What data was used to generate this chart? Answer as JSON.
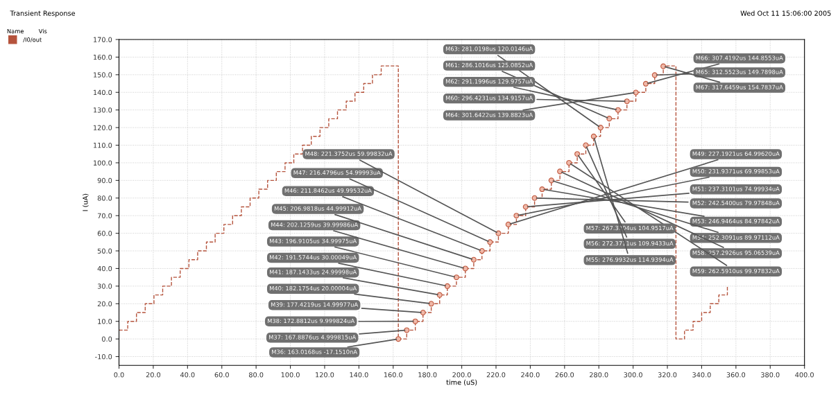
{
  "chart_data": {
    "type": "step",
    "title": "Transient Response",
    "xlabel": "time (uS)",
    "ylabel": "I (uA)",
    "legend_title": "Name        Vis",
    "legend": "left",
    "grid": true,
    "line_style": "dashed",
    "xlim": [
      0,
      400
    ],
    "xticks": [
      {
        "value": 0,
        "label": "0.0"
      },
      {
        "value": 20,
        "label": "20.0"
      },
      {
        "value": 40,
        "label": "40.0"
      },
      {
        "value": 60,
        "label": "60.0"
      },
      {
        "value": 80,
        "label": "80.0"
      },
      {
        "value": 100,
        "label": "100.0"
      },
      {
        "value": 120,
        "label": "120.0"
      },
      {
        "value": 140,
        "label": "140.0"
      },
      {
        "value": 160,
        "label": "160.0"
      },
      {
        "value": 180,
        "label": "180.0"
      },
      {
        "value": 200,
        "label": "200.0"
      },
      {
        "value": 220,
        "label": "220.0"
      },
      {
        "value": 240,
        "label": "240.0"
      },
      {
        "value": 260,
        "label": "260.0"
      },
      {
        "value": 280,
        "label": "280.0"
      },
      {
        "value": 300,
        "label": "300.0"
      },
      {
        "value": 320,
        "label": "320.0"
      },
      {
        "value": 340,
        "label": "340.0"
      },
      {
        "value": 360,
        "label": "360.0"
      },
      {
        "value": 380,
        "label": "380.0"
      },
      {
        "value": 400,
        "label": "400.0"
      }
    ],
    "ylim": [
      -15,
      170
    ],
    "yticks": [
      {
        "value": -10,
        "label": "-10.0"
      },
      {
        "value": 0,
        "label": "0.0"
      },
      {
        "value": 10,
        "label": "10.0"
      },
      {
        "value": 20,
        "label": "20.0"
      },
      {
        "value": 30,
        "label": "30.0"
      },
      {
        "value": 40,
        "label": "40.0"
      },
      {
        "value": 50,
        "label": "50.0"
      },
      {
        "value": 60,
        "label": "60.0"
      },
      {
        "value": 70,
        "label": "70.0"
      },
      {
        "value": 80,
        "label": "80.0"
      },
      {
        "value": 90,
        "label": "90.0"
      },
      {
        "value": 100,
        "label": "100.0"
      },
      {
        "value": 110,
        "label": "110.0"
      },
      {
        "value": 120,
        "label": "120.0"
      },
      {
        "value": 130,
        "label": "130.0"
      },
      {
        "value": 140,
        "label": "140.0"
      },
      {
        "value": 150,
        "label": "150.0"
      },
      {
        "value": 160,
        "label": "160.0"
      },
      {
        "value": 170,
        "label": "170.0"
      }
    ],
    "series": [
      {
        "name": "/I0/out",
        "color": "#b5533c",
        "x": [
          0,
          5.1,
          10.2,
          15.3,
          20.4,
          25.5,
          30.6,
          35.7,
          40.8,
          45.9,
          51,
          56.1,
          61.2,
          66.3,
          71.4,
          76.5,
          81.6,
          86.7,
          91.8,
          96.9,
          102,
          107.1,
          112.2,
          117.3,
          122.4,
          127.5,
          132.6,
          137.7,
          142.8,
          147.9,
          153,
          163.0,
          167.9,
          172.9,
          177.4,
          182.2,
          187.1,
          191.6,
          196.9,
          202.1,
          207.0,
          211.8,
          216.5,
          221.4,
          227.2,
          231.9,
          237.3,
          242.5,
          246.9,
          252.3,
          257.3,
          262.6,
          267.4,
          272.4,
          277.0,
          281.0,
          286.1,
          291.2,
          296.4,
          301.6,
          307.4,
          312.6,
          317.6,
          325,
          330,
          335,
          340,
          345,
          350,
          355
        ],
        "values": [
          5,
          10,
          15,
          20,
          25,
          30,
          35,
          40,
          45,
          50,
          55,
          60,
          65,
          70,
          75,
          80,
          85,
          90,
          95,
          100,
          105,
          110,
          115,
          120,
          125,
          130,
          135,
          140,
          145,
          150,
          155,
          0,
          5,
          10,
          15,
          20,
          25,
          30,
          35,
          40,
          45,
          50,
          55,
          60,
          65,
          70,
          75,
          80,
          85,
          90,
          95,
          100,
          105,
          110,
          115,
          120,
          125,
          130,
          135,
          140,
          145,
          150,
          155,
          0,
          5,
          10,
          15,
          20,
          25,
          30
        ]
      }
    ],
    "annotations": [
      {
        "text": "M36: 163.0168us -17.1510nA",
        "x": 163.0,
        "y": -0.01715
      },
      {
        "text": "M37: 167.8876us 4.999815uA",
        "x": 167.9,
        "y": 5.0
      },
      {
        "text": "M38: 172.8812us 9.999824uA",
        "x": 172.9,
        "y": 10.0
      },
      {
        "text": "M39: 177.4219us 14.99977uA",
        "x": 177.4,
        "y": 15.0
      },
      {
        "text": "M40: 182.1754us 20.00004uA",
        "x": 182.2,
        "y": 20.0
      },
      {
        "text": "M41: 187.1433us 24.99998uA",
        "x": 187.1,
        "y": 25.0
      },
      {
        "text": "M42: 191.5744us 30.00049uA",
        "x": 191.6,
        "y": 30.0
      },
      {
        "text": "M43: 196.9105us 34.99975uA",
        "x": 196.9,
        "y": 35.0
      },
      {
        "text": "M44: 202.1259us 39.99986uA",
        "x": 202.1,
        "y": 40.0
      },
      {
        "text": "M45: 206.9818us 44.99912uA",
        "x": 207.0,
        "y": 45.0
      },
      {
        "text": "M46: 211.8462us 49.99532uA",
        "x": 211.8,
        "y": 50.0
      },
      {
        "text": "M47: 216.4796us 54.99993uA",
        "x": 216.5,
        "y": 55.0
      },
      {
        "text": "M48: 221.3752us 59.99832uA",
        "x": 221.4,
        "y": 60.0
      },
      {
        "text": "M49: 227.1921us 64.99620uA",
        "x": 227.2,
        "y": 65.0
      },
      {
        "text": "M50: 231.9371us 69.99853uA",
        "x": 231.9,
        "y": 70.0
      },
      {
        "text": "M51: 237.3101us 74.99934uA",
        "x": 237.3,
        "y": 75.0
      },
      {
        "text": "M52: 242.5400us 79.97848uA",
        "x": 242.5,
        "y": 80.0
      },
      {
        "text": "M53: 246.9464us 84.97842uA",
        "x": 246.9,
        "y": 85.0
      },
      {
        "text": "M54: 252.3091us 89.97112uA",
        "x": 252.3,
        "y": 90.0
      },
      {
        "text": "M58: 257.2926us 95.06539uA",
        "x": 257.3,
        "y": 95.1
      },
      {
        "text": "M59: 262.5910us 99.97832uA",
        "x": 262.6,
        "y": 100.0
      },
      {
        "text": "M57: 267.3704us 104.9517uA",
        "x": 267.4,
        "y": 105.0
      },
      {
        "text": "M56: 272.3711us 109.9433uA",
        "x": 272.4,
        "y": 110.0
      },
      {
        "text": "M55: 276.9932us 114.9394uA",
        "x": 277.0,
        "y": 115.0
      },
      {
        "text": "M63: 281.0198us 120.0146uA",
        "x": 281.0,
        "y": 120.0
      },
      {
        "text": "M61: 286.1016us 125.0852uA",
        "x": 286.1,
        "y": 125.1
      },
      {
        "text": "M62: 291.1996us 129.9757uA",
        "x": 291.2,
        "y": 130.0
      },
      {
        "text": "M60: 296.4231us 134.9157uA",
        "x": 296.4,
        "y": 134.9
      },
      {
        "text": "M64: 301.6422us 139.8823uA",
        "x": 301.6,
        "y": 139.9
      },
      {
        "text": "M66: 307.4192us 144.8553uA",
        "x": 307.4,
        "y": 144.9
      },
      {
        "text": "M65: 312.5523us 149.7898uA",
        "x": 312.6,
        "y": 149.8
      },
      {
        "text": "M67: 317.6459us 154.7837uA",
        "x": 317.6,
        "y": 154.8
      },
      "Wed Oct 11 15:06:00 2005"
    ]
  }
}
